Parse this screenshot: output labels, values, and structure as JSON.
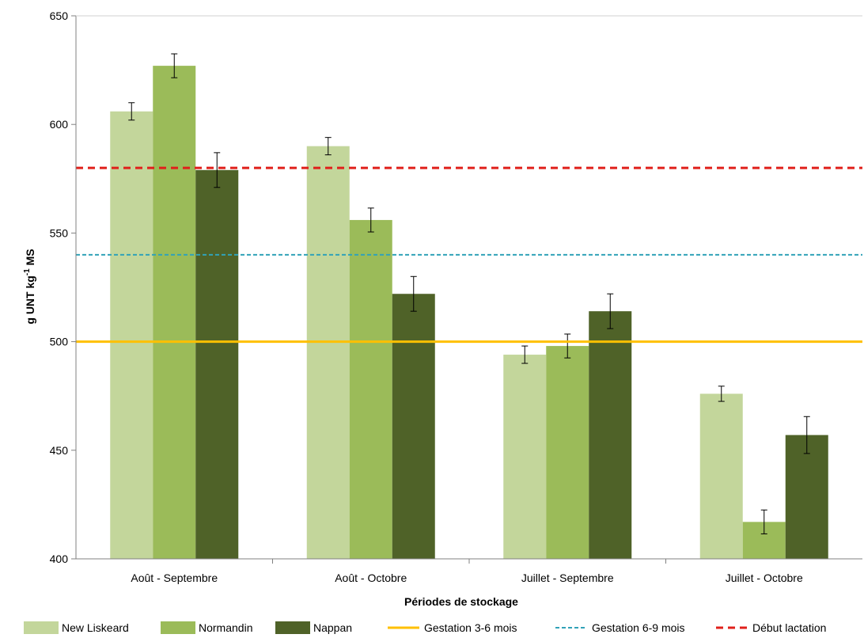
{
  "chart_data": {
    "type": "bar",
    "title": "",
    "xlabel": "Périodes de stockage",
    "ylabel": "g UNT kg-1 MS",
    "ylabel_main": "g UNT kg",
    "ylabel_sup": "-1",
    "ylabel_tail": " MS",
    "ylim": [
      400,
      650
    ],
    "yticks": [
      400,
      450,
      500,
      550,
      600,
      650
    ],
    "grid": false,
    "legend_position": "bottom",
    "categories": [
      "Août - Septembre",
      "Août - Octobre",
      "Juillet - Septembre",
      "Juillet - Octobre"
    ],
    "series": [
      {
        "name": "New Liskeard",
        "color": "#c3d69b",
        "values": [
          606,
          590,
          494,
          476
        ],
        "errors": [
          4,
          4,
          4,
          3.5
        ]
      },
      {
        "name": "Normandin",
        "color": "#9bbb59",
        "values": [
          627,
          556,
          498,
          417
        ],
        "errors": [
          5.5,
          5.5,
          5.5,
          5.5
        ]
      },
      {
        "name": "Nappan",
        "color": "#4f6228",
        "values": [
          579,
          522,
          514,
          457
        ],
        "errors": [
          8,
          8,
          8,
          8.5
        ]
      }
    ],
    "reference_lines": [
      {
        "name": "Gestation 3-6 mois",
        "value": 500,
        "color": "#ffc000",
        "style": "solid"
      },
      {
        "name": "Gestation 6-9 mois",
        "value": 540,
        "color": "#31a2b8",
        "style": "dashed"
      },
      {
        "name": "Début lactation",
        "value": 580,
        "color": "#e0201b",
        "style": "dashed"
      }
    ]
  }
}
